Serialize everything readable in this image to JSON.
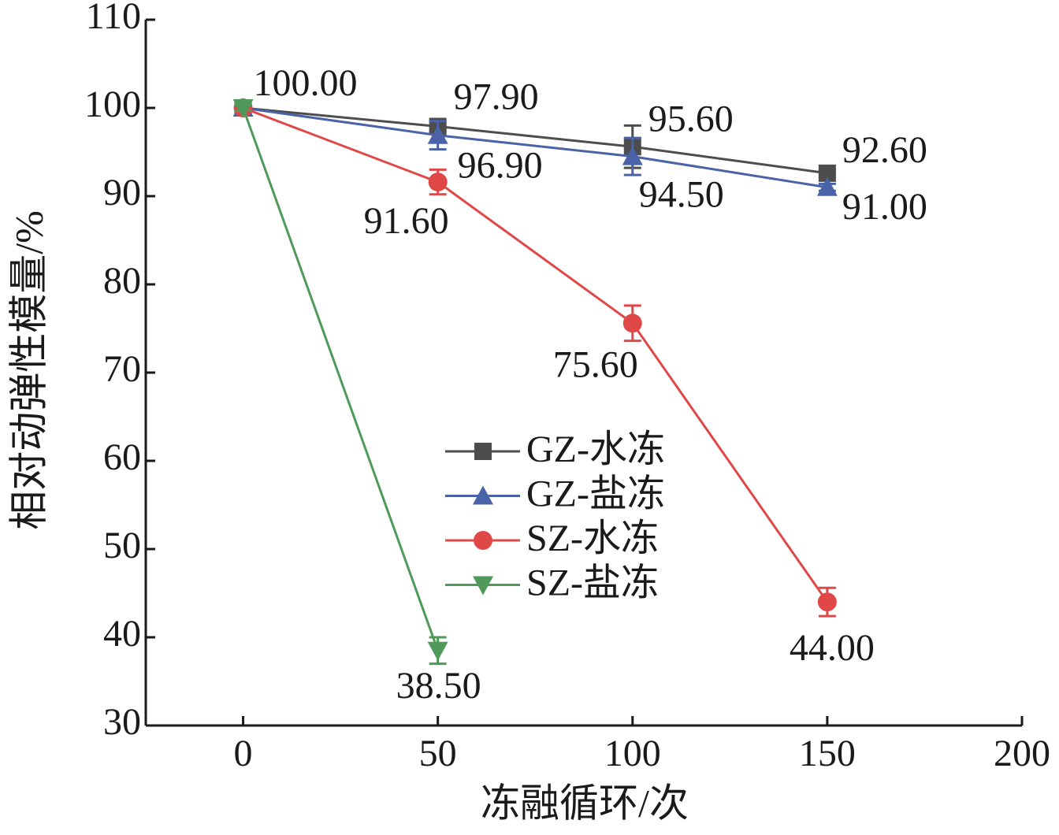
{
  "chart_data": {
    "type": "line",
    "x_label": "冻融循环/次",
    "y_label": "相对动弹性模量/%",
    "xlim": [
      -25,
      200
    ],
    "xticks": [
      0,
      50,
      100,
      150,
      200
    ],
    "ylim": [
      30,
      110
    ],
    "yticks": [
      30,
      40,
      50,
      60,
      70,
      80,
      90,
      100,
      110
    ],
    "legend": "center",
    "series": [
      {
        "name": "GZ-水冻",
        "color": "#4d4d4d",
        "marker": "square",
        "x": [
          0,
          50,
          100,
          150
        ],
        "values": [
          100,
          97.9,
          95.6,
          92.6
        ],
        "errors": [
          0.3,
          0.6,
          2.4,
          0.4
        ],
        "value_labels": [
          "100.00",
          "97.90",
          "95.60",
          "92.60"
        ]
      },
      {
        "name": "GZ-盐冻",
        "color": "#4a63a8",
        "marker": "triangle-up",
        "x": [
          0,
          50,
          100,
          150
        ],
        "values": [
          100,
          96.9,
          94.5,
          91.0
        ],
        "errors": [
          0.3,
          1.6,
          2.1,
          0.4
        ],
        "value_labels": [
          null,
          "96.90",
          "94.50",
          "91.00"
        ]
      },
      {
        "name": "SZ-水冻",
        "color": "#e04848",
        "marker": "circle",
        "x": [
          0,
          50,
          100,
          150
        ],
        "values": [
          100,
          91.6,
          75.6,
          44.0
        ],
        "errors": [
          0.3,
          1.4,
          2.0,
          1.6
        ],
        "value_labels": [
          null,
          "91.60",
          "75.60",
          "44.00"
        ]
      },
      {
        "name": "SZ-盐冻",
        "color": "#4f9a5a",
        "marker": "triangle-down",
        "x": [
          0,
          50
        ],
        "values": [
          100,
          38.5
        ],
        "errors": [
          0.3,
          1.5
        ],
        "value_labels": [
          null,
          "38.50"
        ]
      }
    ]
  }
}
